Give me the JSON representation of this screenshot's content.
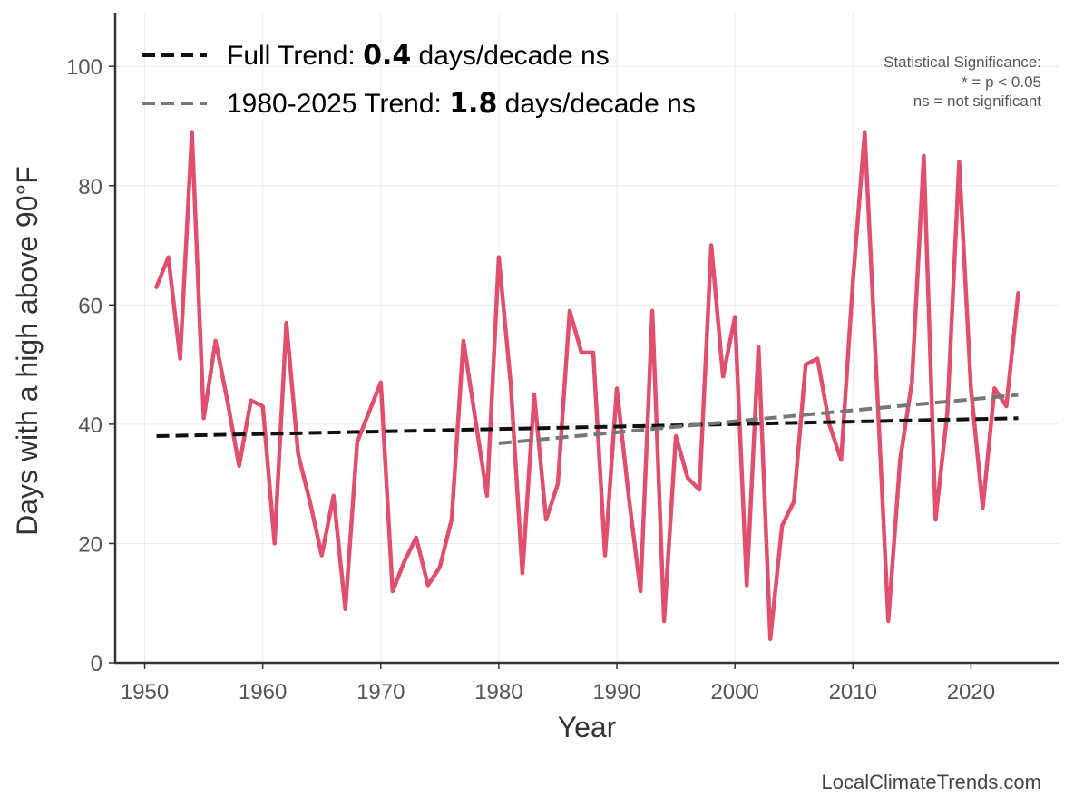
{
  "chart_data": {
    "type": "line",
    "title": "",
    "xlabel": "Year",
    "ylabel": "Days with a high above 90°F",
    "xlim": [
      1947.5,
      2027.5
    ],
    "ylim": [
      0,
      109
    ],
    "x_ticks": [
      1950,
      1960,
      1970,
      1980,
      1990,
      2000,
      2010,
      2020
    ],
    "y_ticks": [
      0,
      20,
      40,
      60,
      80,
      100
    ],
    "grid": true,
    "series": [
      {
        "name": "Days with a high above 90°F",
        "color": "#e0506e",
        "x": [
          1951,
          1952,
          1953,
          1954,
          1955,
          1956,
          1957,
          1958,
          1959,
          1960,
          1961,
          1962,
          1963,
          1964,
          1965,
          1966,
          1967,
          1968,
          1969,
          1970,
          1971,
          1972,
          1973,
          1974,
          1975,
          1976,
          1977,
          1978,
          1979,
          1980,
          1981,
          1982,
          1983,
          1984,
          1985,
          1986,
          1987,
          1988,
          1989,
          1990,
          1991,
          1992,
          1993,
          1994,
          1995,
          1996,
          1997,
          1998,
          1999,
          2000,
          2001,
          2002,
          2003,
          2004,
          2005,
          2006,
          2007,
          2008,
          2009,
          2010,
          2011,
          2012,
          2013,
          2014,
          2015,
          2016,
          2017,
          2018,
          2019,
          2020,
          2021,
          2022,
          2023,
          2024
        ],
        "values": [
          63,
          68,
          51,
          89,
          41,
          54,
          44,
          33,
          44,
          43,
          20,
          57,
          35,
          27,
          18,
          28,
          9,
          37,
          42,
          47,
          12,
          17,
          21,
          13,
          16,
          24,
          54,
          41,
          28,
          68,
          47,
          15,
          45,
          24,
          30,
          59,
          52,
          52,
          18,
          46,
          28,
          12,
          59,
          7,
          38,
          31,
          29,
          70,
          48,
          58,
          13,
          53,
          4,
          23,
          27,
          50,
          51,
          40,
          34,
          64,
          89,
          48,
          7,
          34,
          47,
          85,
          24,
          42,
          84,
          46,
          26,
          46,
          43,
          62
        ]
      }
    ],
    "trends": [
      {
        "name": "Full Trend",
        "color": "#111111",
        "x": [
          1951,
          2024
        ],
        "y": [
          38.0,
          41.0
        ],
        "label_prefix": "Full Trend: ",
        "value": "0.4",
        "label_suffix": " days/decade ns"
      },
      {
        "name": "1980-2025 Trend",
        "color": "#777777",
        "x": [
          1980,
          2024
        ],
        "y": [
          36.8,
          44.9
        ],
        "label_prefix": "1980-2025 Trend: ",
        "value": "1.8",
        "label_suffix": " days/decade ns"
      }
    ],
    "significance_note": [
      "Statistical Significance:",
      "* = p < 0.05",
      "ns = not significant"
    ],
    "source": "LocalClimateTrends.com",
    "legend_position": "top-left"
  }
}
